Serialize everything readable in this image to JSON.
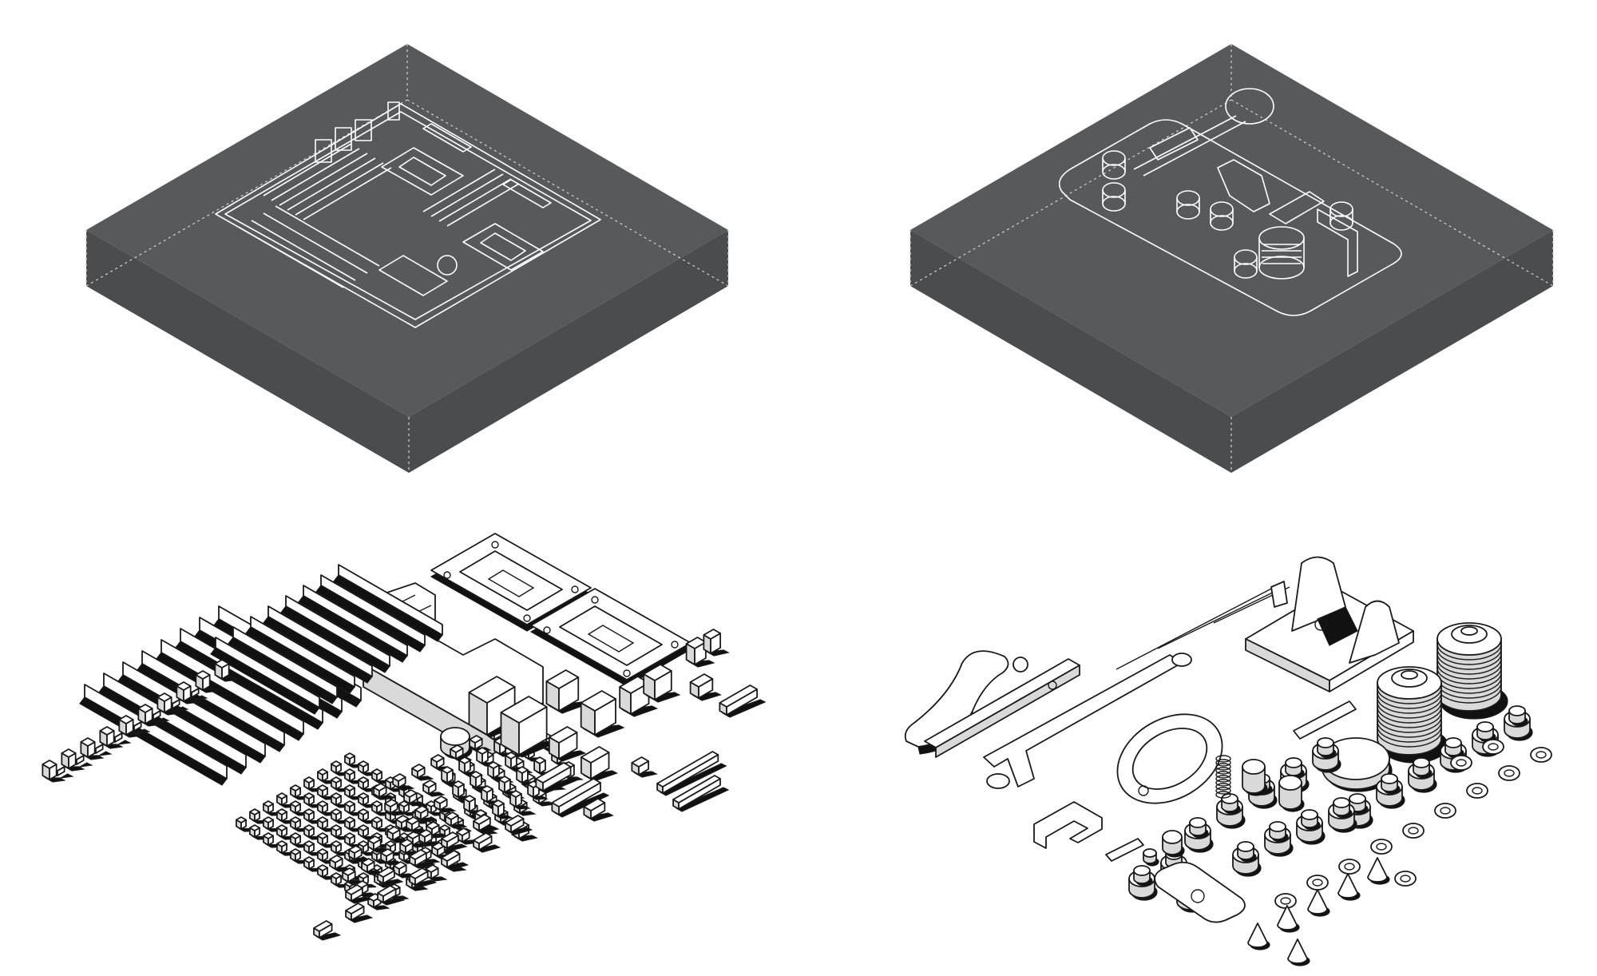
{
  "figure": {
    "panels": [
      {
        "id": "motherboard-encased",
        "object": "motherboard",
        "view": "encased"
      },
      {
        "id": "telegraph-key-encased",
        "object": "telegraph-key",
        "view": "encased"
      },
      {
        "id": "motherboard-exploded",
        "object": "motherboard",
        "view": "exploded"
      },
      {
        "id": "telegraph-key-exploded",
        "object": "telegraph-key",
        "view": "exploded"
      }
    ],
    "colors": {
      "background": "#ffffff",
      "block_top": "#58595b",
      "block_side": "#4b4c4e",
      "block_edge": "#d4d4d4",
      "line_art": "#ffffff",
      "ink": "#1a1a1a",
      "shadow": "#111111",
      "part_fill": "#ffffff"
    }
  }
}
